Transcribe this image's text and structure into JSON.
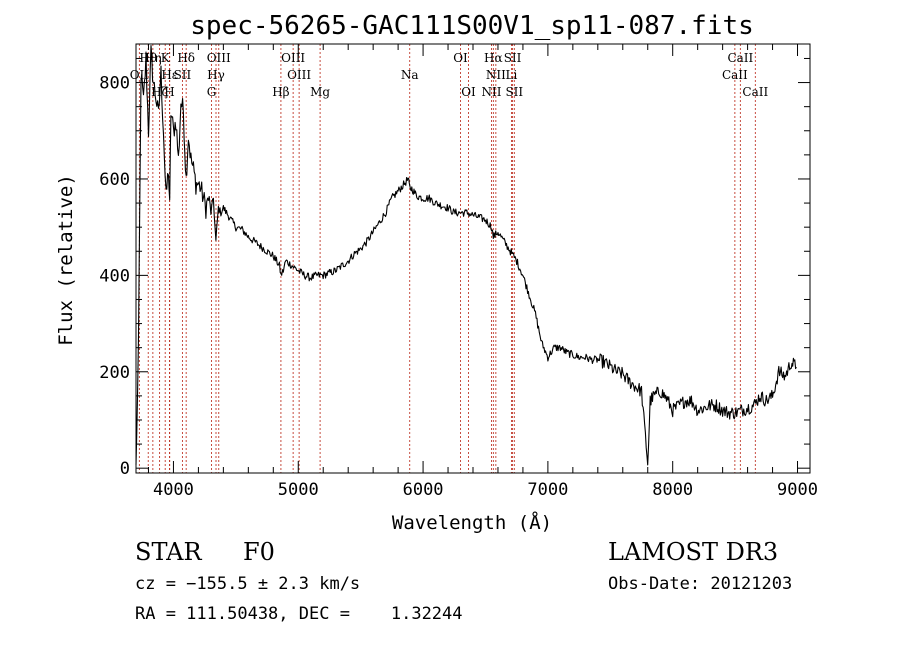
{
  "chart_data": {
    "type": "line",
    "title": "spec-56265-GAC111S00V1_sp11-087.fits",
    "xlabel": "Wavelength (Å)",
    "ylabel": "Flux (relative)",
    "xlim": [
      3700,
      9100
    ],
    "ylim": [
      -10,
      880
    ],
    "xticks": [
      4000,
      5000,
      6000,
      7000,
      8000,
      9000
    ],
    "xtick_labels": [
      "4000",
      "5000",
      "6000",
      "7000",
      "8000",
      "9000"
    ],
    "yticks": [
      0,
      200,
      400,
      600,
      800
    ],
    "ytick_labels": [
      "0",
      "200",
      "400",
      "600",
      "800"
    ],
    "grid": false,
    "series": [
      {
        "x": [
          3700,
          3720,
          3740,
          3760,
          3780,
          3800,
          3820,
          3840,
          3860,
          3880,
          3900,
          3920,
          3940,
          3960,
          3970,
          3980,
          4000,
          4020,
          4040,
          4060,
          4080,
          4101,
          4120,
          4140,
          4160,
          4180,
          4200,
          4220,
          4240,
          4260,
          4280,
          4300,
          4320,
          4340,
          4360,
          4380,
          4400,
          4450,
          4500,
          4550,
          4600,
          4650,
          4700,
          4750,
          4800,
          4850,
          4861,
          4880,
          4900,
          4950,
          5000,
          5050,
          5100,
          5150,
          5200,
          5250,
          5300,
          5350,
          5400,
          5450,
          5500,
          5550,
          5600,
          5650,
          5700,
          5750,
          5800,
          5850,
          5880,
          5895,
          5910,
          5950,
          6000,
          6050,
          6100,
          6150,
          6200,
          6250,
          6300,
          6350,
          6400,
          6450,
          6500,
          6550,
          6563,
          6600,
          6650,
          6700,
          6750,
          6800,
          6850,
          6900,
          6950,
          7000,
          7050,
          7100,
          7150,
          7200,
          7250,
          7300,
          7350,
          7400,
          7450,
          7500,
          7550,
          7600,
          7650,
          7700,
          7750,
          7800,
          7820,
          7850,
          7900,
          7950,
          8000,
          8050,
          8100,
          8150,
          8200,
          8250,
          8300,
          8350,
          8400,
          8450,
          8500,
          8550,
          8600,
          8650,
          8700,
          8750,
          8800,
          8850,
          8900,
          8950,
          8990
        ],
        "y": [
          0,
          250,
          820,
          760,
          850,
          700,
          860,
          800,
          770,
          730,
          820,
          700,
          560,
          620,
          540,
          740,
          700,
          720,
          640,
          760,
          740,
          600,
          690,
          640,
          620,
          590,
          590,
          580,
          560,
          540,
          560,
          530,
          560,
          470,
          540,
          530,
          540,
          520,
          500,
          495,
          480,
          470,
          460,
          450,
          440,
          420,
          400,
          410,
          430,
          420,
          410,
          400,
          395,
          400,
          400,
          405,
          410,
          420,
          430,
          445,
          455,
          470,
          490,
          510,
          530,
          560,
          575,
          590,
          600,
          580,
          580,
          565,
          560,
          560,
          550,
          545,
          540,
          530,
          530,
          530,
          525,
          520,
          515,
          500,
          480,
          490,
          470,
          450,
          430,
          400,
          360,
          320,
          260,
          230,
          250,
          250,
          240,
          235,
          230,
          230,
          225,
          225,
          220,
          210,
          200,
          195,
          180,
          170,
          160,
          10,
          140,
          150,
          160,
          145,
          120,
          130,
          140,
          140,
          120,
          125,
          130,
          130,
          120,
          115,
          115,
          120,
          125,
          130,
          150,
          140,
          150,
          200,
          190,
          220,
          210
        ]
      }
    ],
    "annotations": [
      {
        "label": "Hθ",
        "x": 3798,
        "row": 1
      },
      {
        "label": "Hη",
        "x": 3835,
        "row": 1
      },
      {
        "label": "K",
        "x": 3934,
        "row": 1
      },
      {
        "label": "Hδ",
        "x": 4102,
        "row": 1
      },
      {
        "label": "OIII",
        "x": 4363,
        "row": 1
      },
      {
        "label": "OIII",
        "x": 4959,
        "row": 1
      },
      {
        "label": "OI",
        "x": 6300,
        "row": 1
      },
      {
        "label": "Hα",
        "x": 6563,
        "row": 1
      },
      {
        "label": "SII",
        "x": 6717,
        "row": 1
      },
      {
        "label": "CaII",
        "x": 8542,
        "row": 1
      },
      {
        "label": "OII",
        "x": 3727,
        "row": 2
      },
      {
        "label": "Hε",
        "x": 3970,
        "row": 2
      },
      {
        "label": "SII",
        "x": 4072,
        "row": 2
      },
      {
        "label": "Hγ",
        "x": 4341,
        "row": 2
      },
      {
        "label": "OIII",
        "x": 5007,
        "row": 2
      },
      {
        "label": "Na",
        "x": 5893,
        "row": 2
      },
      {
        "label": "NII",
        "x": 6583,
        "row": 2
      },
      {
        "label": "Li",
        "x": 6708,
        "row": 2
      },
      {
        "label": "CaII",
        "x": 8498,
        "row": 2
      },
      {
        "label": "Hζ",
        "x": 3889,
        "row": 3
      },
      {
        "label": "H",
        "x": 3968,
        "row": 3
      },
      {
        "label": "G",
        "x": 4305,
        "row": 3
      },
      {
        "label": "Hβ",
        "x": 4861,
        "row": 3
      },
      {
        "label": "Mg",
        "x": 5175,
        "row": 3
      },
      {
        "label": "OI",
        "x": 6364,
        "row": 3
      },
      {
        "label": "NII",
        "x": 6548,
        "row": 3
      },
      {
        "label": "SII",
        "x": 6731,
        "row": 3
      },
      {
        "label": "CaII",
        "x": 8662,
        "row": 3
      }
    ]
  },
  "info": {
    "class": "STAR",
    "subclass": "F0",
    "survey": "LAMOST DR3",
    "redshift": "cz = −155.5 ± 2.3 km/s",
    "obs_date": "Obs-Date: 20121203",
    "coords": "RA = 111.50438, DEC =    1.32244"
  }
}
